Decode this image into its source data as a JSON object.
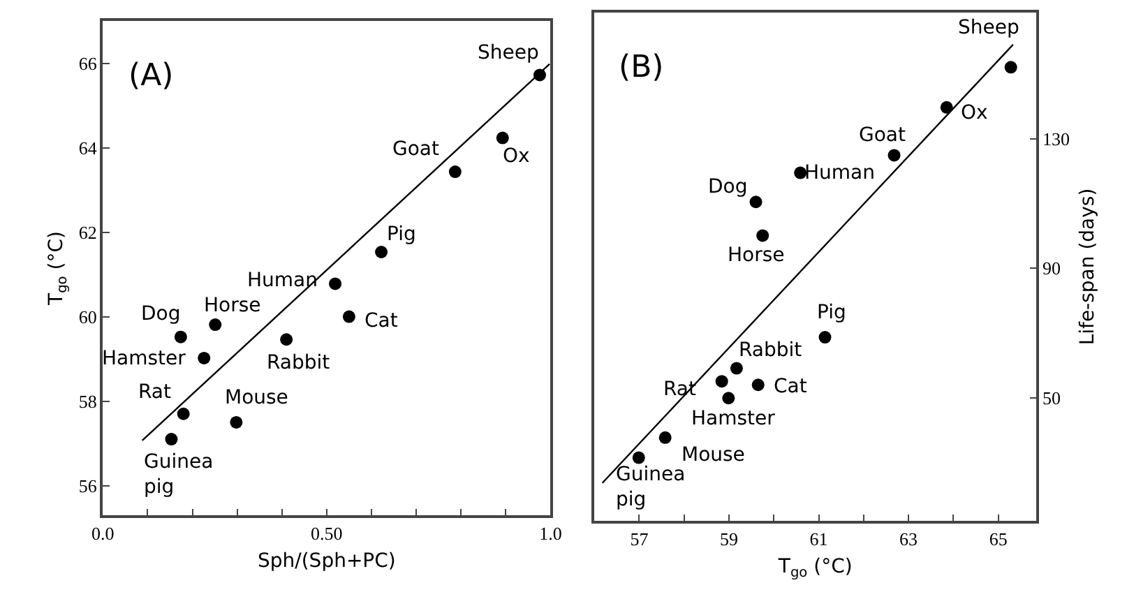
{
  "chart_data": [
    {
      "type": "scatter",
      "title": "(A)",
      "xlabel": "Sph/(Sph+PC)",
      "ylabel": "T$_{go}$ (°C)",
      "xlim": [
        0,
        1
      ],
      "ylim": [
        55.3,
        67.0
      ],
      "xticks": [
        {
          "value": 0,
          "label": "0.0"
        },
        {
          "value": 0.1,
          "label": null
        },
        {
          "value": 0.2,
          "label": null
        },
        {
          "value": 0.3,
          "label": null
        },
        {
          "value": 0.4,
          "label": null
        },
        {
          "value": 0.5,
          "label": "0.50"
        },
        {
          "value": 0.6,
          "label": null
        },
        {
          "value": 0.7,
          "label": null
        },
        {
          "value": 0.8,
          "label": null
        },
        {
          "value": 0.9,
          "label": null
        },
        {
          "value": 1,
          "label": "1.0"
        }
      ],
      "yticks": [
        56,
        58,
        60,
        62,
        64,
        66
      ],
      "series": [
        {
          "color": "#000000",
          "marker": "circle",
          "x": [
            0.976,
            0.893,
            0.787,
            0.622,
            0.519,
            0.55,
            0.41,
            0.251,
            0.174,
            0.226,
            0.18,
            0.298,
            0.153
          ],
          "values": [
            65.72,
            64.23,
            63.43,
            61.53,
            60.78,
            60.0,
            59.46,
            59.81,
            59.52,
            59.02,
            57.7,
            57.5,
            57.1
          ]
        },
        {
          "type": "line",
          "color": "#000000",
          "marker": "none",
          "line_style": "solid",
          "x": [
            0.088,
            0.998
          ],
          "values": [
            57.07,
            65.98
          ]
        }
      ],
      "annotations": [
        {
          "text": "Sheep",
          "x": 0.976,
          "y": 65.72
        },
        {
          "text": "Ox",
          "x": 0.893,
          "y": 64.23
        },
        {
          "text": "Goat",
          "x": 0.787,
          "y": 63.43
        },
        {
          "text": "Pig",
          "x": 0.622,
          "y": 61.53
        },
        {
          "text": "Human",
          "x": 0.519,
          "y": 60.78
        },
        {
          "text": "Cat",
          "x": 0.55,
          "y": 60.0
        },
        {
          "text": "Rabbit",
          "x": 0.41,
          "y": 59.46
        },
        {
          "text": "Horse",
          "x": 0.251,
          "y": 59.81
        },
        {
          "text": "Dog",
          "x": 0.174,
          "y": 59.52
        },
        {
          "text": "Hamster",
          "x": 0.226,
          "y": 59.02
        },
        {
          "text": "Rat",
          "x": 0.18,
          "y": 57.7
        },
        {
          "text": "Mouse",
          "x": 0.298,
          "y": 57.5
        },
        {
          "text": "Guinea pig",
          "x": 0.153,
          "y": 57.1
        }
      ]
    },
    {
      "type": "scatter",
      "title": "(B)",
      "xlabel": "T$_{go}$ (°C)",
      "ylabel": "Life-span (days)",
      "xlim": [
        56.0,
        65.85
      ],
      "ylim": [
        12,
        169
      ],
      "xticks": [
        57,
        {
          "value": 58,
          "label": null
        },
        59,
        {
          "value": 60,
          "label": null
        },
        61,
        {
          "value": 62,
          "label": null
        },
        63,
        {
          "value": 64,
          "label": null
        },
        65
      ],
      "yticks": [
        50,
        90,
        130
      ],
      "series": [
        {
          "color": "#000000",
          "marker": "circle",
          "x": [
            65.28,
            63.85,
            62.68,
            60.59,
            59.6,
            59.75,
            61.14,
            59.17,
            58.84,
            59.65,
            58.99,
            57.58,
            56.99
          ],
          "values": [
            152.1,
            139.7,
            124.9,
            119.5,
            110.5,
            100.1,
            68.7,
            59.1,
            55.1,
            54.0,
            49.9,
            37.7,
            31.5
          ]
        },
        {
          "type": "line",
          "color": "#000000",
          "marker": "none",
          "line_style": "solid",
          "x": [
            56.18,
            65.33
          ],
          "values": [
            23.7,
            159.1
          ]
        }
      ],
      "annotations": [
        {
          "text": "Sheep",
          "x": 65.28,
          "y": 152.1
        },
        {
          "text": "Ox",
          "x": 63.85,
          "y": 139.7
        },
        {
          "text": "Goat",
          "x": 62.68,
          "y": 124.9
        },
        {
          "text": "Human",
          "x": 60.59,
          "y": 119.5
        },
        {
          "text": "Dog",
          "x": 59.6,
          "y": 110.5
        },
        {
          "text": "Horse",
          "x": 59.75,
          "y": 100.1
        },
        {
          "text": "Pig",
          "x": 61.14,
          "y": 68.7
        },
        {
          "text": "Rabbit",
          "x": 59.17,
          "y": 59.1
        },
        {
          "text": "Rat",
          "x": 58.84,
          "y": 55.1
        },
        {
          "text": "Cat",
          "x": 59.65,
          "y": 54.0
        },
        {
          "text": "Hamster",
          "x": 58.99,
          "y": 49.9
        },
        {
          "text": "Mouse",
          "x": 57.58,
          "y": 37.7
        },
        {
          "text": "Guinea pig",
          "x": 56.99,
          "y": 31.5
        }
      ]
    }
  ]
}
